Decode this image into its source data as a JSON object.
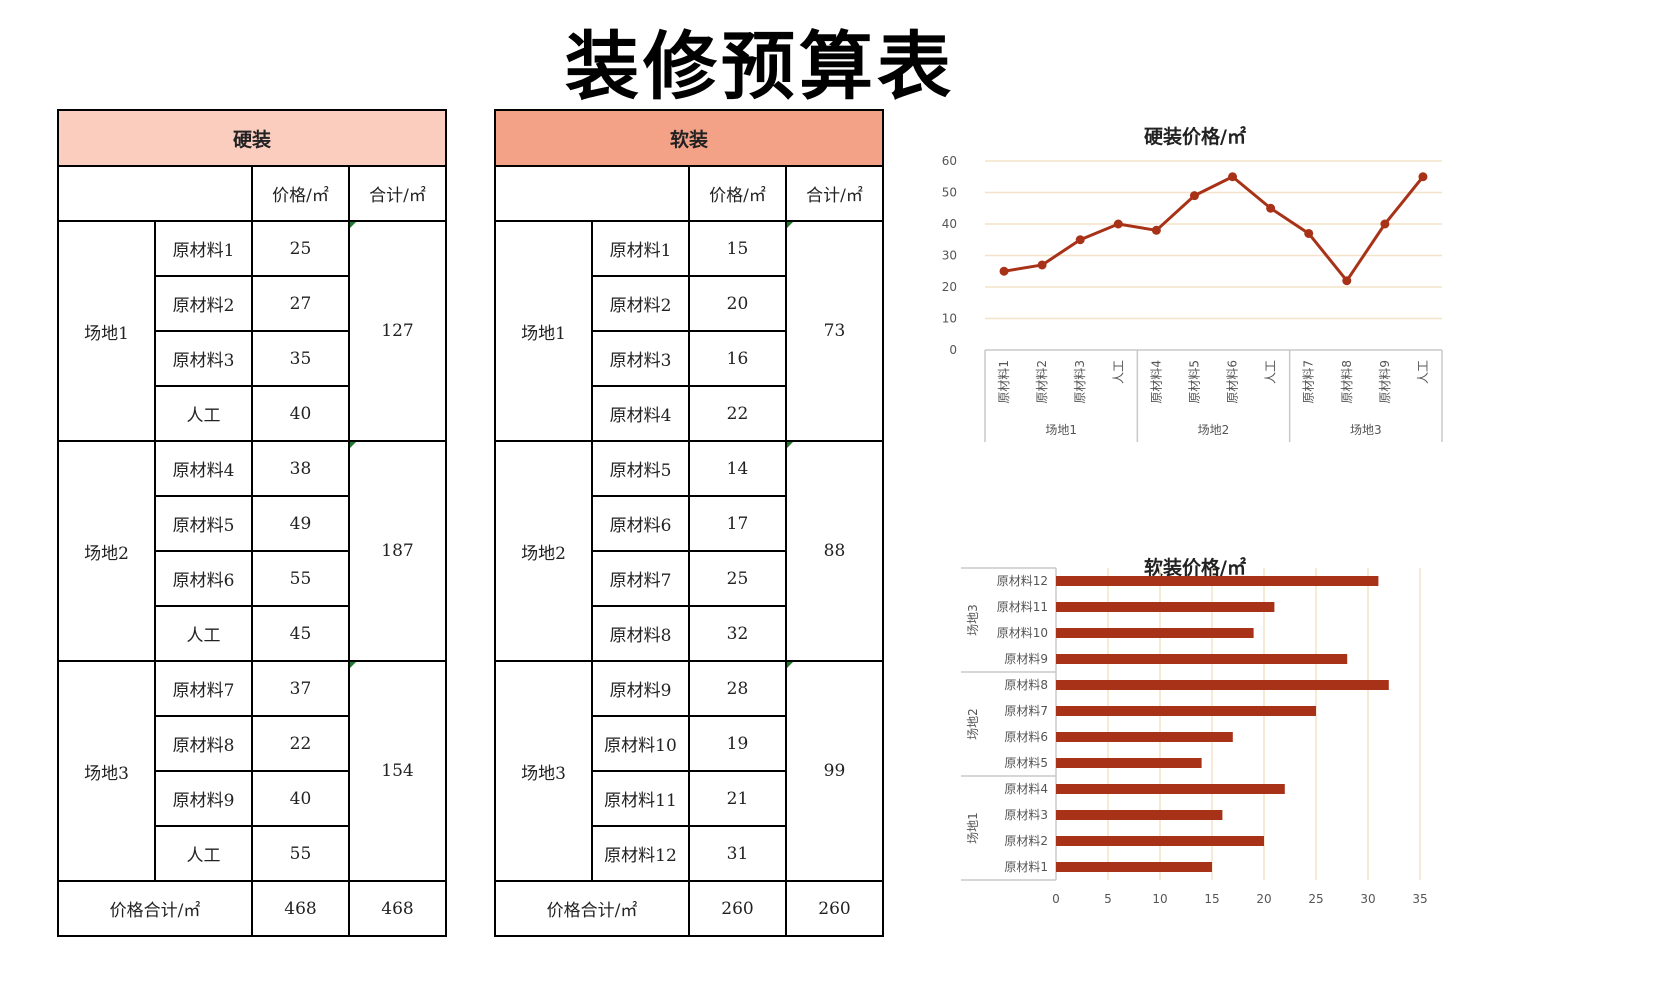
{
  "title": "装修预算表",
  "hard": {
    "header": "硬装",
    "col_price": "价格/㎡",
    "col_total": "合计/㎡",
    "groups": [
      {
        "site": "场地1",
        "total": "127",
        "items": [
          {
            "name": "原材料1",
            "price": "25"
          },
          {
            "name": "原材料2",
            "price": "27"
          },
          {
            "name": "原材料3",
            "price": "35"
          },
          {
            "name": "人工",
            "price": "40"
          }
        ]
      },
      {
        "site": "场地2",
        "total": "187",
        "items": [
          {
            "name": "原材料4",
            "price": "38"
          },
          {
            "name": "原材料5",
            "price": "49"
          },
          {
            "name": "原材料6",
            "price": "55"
          },
          {
            "name": "人工",
            "price": "45"
          }
        ]
      },
      {
        "site": "场地3",
        "total": "154",
        "items": [
          {
            "name": "原材料7",
            "price": "37"
          },
          {
            "name": "原材料8",
            "price": "22"
          },
          {
            "name": "原材料9",
            "price": "40"
          },
          {
            "name": "人工",
            "price": "55"
          }
        ]
      }
    ],
    "footer": {
      "label": "价格合计/㎡",
      "price_sum": "468",
      "total_sum": "468"
    }
  },
  "soft": {
    "header": "软装",
    "col_price": "价格/㎡",
    "col_total": "合计/㎡",
    "groups": [
      {
        "site": "场地1",
        "total": "73",
        "items": [
          {
            "name": "原材料1",
            "price": "15"
          },
          {
            "name": "原材料2",
            "price": "20"
          },
          {
            "name": "原材料3",
            "price": "16"
          },
          {
            "name": "原材料4",
            "price": "22"
          }
        ]
      },
      {
        "site": "场地2",
        "total": "88",
        "items": [
          {
            "name": "原材料5",
            "price": "14"
          },
          {
            "name": "原材料6",
            "price": "17"
          },
          {
            "name": "原材料7",
            "price": "25"
          },
          {
            "name": "原材料8",
            "price": "32"
          }
        ]
      },
      {
        "site": "场地3",
        "total": "99",
        "items": [
          {
            "name": "原材料9",
            "price": "28"
          },
          {
            "name": "原材料10",
            "price": "19"
          },
          {
            "name": "原材料11",
            "price": "21"
          },
          {
            "name": "原材料12",
            "price": "31"
          }
        ]
      }
    ],
    "footer": {
      "label": "价格合计/㎡",
      "price_sum": "260",
      "total_sum": "260"
    }
  },
  "colors": {
    "line": "#a83218",
    "bar": "#a83218",
    "grid": "#f3e3c8"
  },
  "chart_data": [
    {
      "type": "line",
      "title": "硬装价格/㎡",
      "categories": [
        "原材料1",
        "原材料2",
        "原材料3",
        "人工",
        "原材料4",
        "原材料5",
        "原材料6",
        "人工",
        "原材料7",
        "原材料8",
        "原材料9",
        "人工"
      ],
      "groups": [
        {
          "name": "场地1",
          "size": 4
        },
        {
          "name": "场地2",
          "size": 4
        },
        {
          "name": "场地3",
          "size": 4
        }
      ],
      "values": [
        25,
        27,
        35,
        40,
        38,
        49,
        55,
        45,
        37,
        22,
        40,
        55
      ],
      "ylim": [
        0,
        60
      ],
      "yticks": [
        0,
        10,
        20,
        30,
        40,
        50,
        60
      ],
      "grid": true
    },
    {
      "type": "bar",
      "orientation": "horizontal",
      "title": "软装价格/㎡",
      "categories": [
        "原材料1",
        "原材料2",
        "原材料3",
        "原材料4",
        "原材料5",
        "原材料6",
        "原材料7",
        "原材料8",
        "原材料9",
        "原材料10",
        "原材料11",
        "原材料12"
      ],
      "groups": [
        {
          "name": "场地1",
          "size": 4
        },
        {
          "name": "场地2",
          "size": 4
        },
        {
          "name": "场地3",
          "size": 4
        }
      ],
      "values": [
        15,
        20,
        16,
        22,
        14,
        17,
        25,
        32,
        28,
        19,
        21,
        31
      ],
      "xlim": [
        0,
        35
      ],
      "xticks": [
        0,
        5,
        10,
        15,
        20,
        25,
        30,
        35
      ],
      "grid": true
    }
  ]
}
